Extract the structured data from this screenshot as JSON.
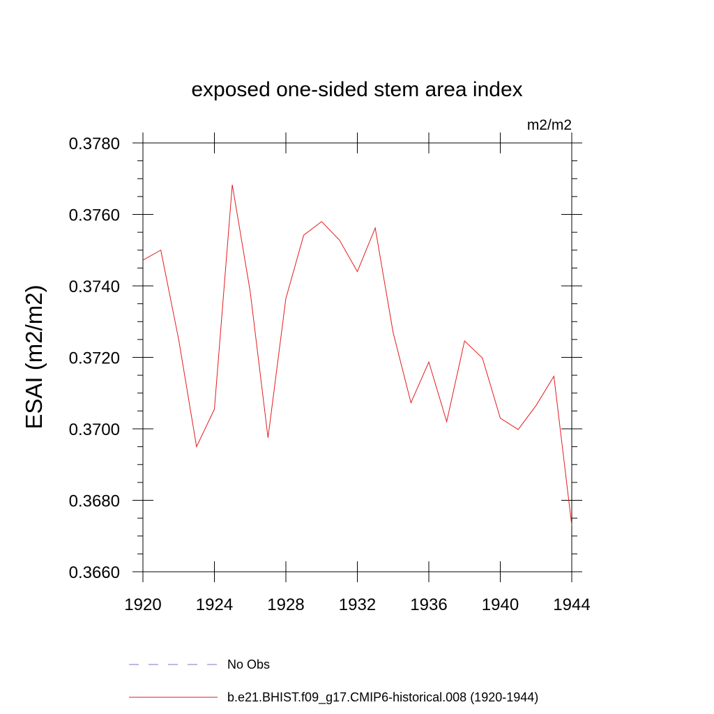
{
  "chart_data": {
    "type": "line",
    "title": "exposed one-sided stem area index",
    "units_label": "m2/m2",
    "ylabel": "ESAI  (m2/m2)",
    "xlabel": "",
    "xlim": [
      1920,
      1944
    ],
    "ylim": [
      0.366,
      0.378
    ],
    "x_ticks": [
      "1920",
      "1924",
      "1928",
      "1932",
      "1936",
      "1940",
      "1944"
    ],
    "y_ticks": [
      "0.3660",
      "0.3680",
      "0.3700",
      "0.3720",
      "0.3740",
      "0.3760",
      "0.3780"
    ],
    "grid": false,
    "legend_position": "bottom",
    "legend": [
      {
        "label": "No Obs",
        "color": "#7b73c8",
        "style": "dashed"
      },
      {
        "label": "b.e21.BHIST.f09_g17.CMIP6-historical.008 (1920-1944)",
        "color": "#e31a1c",
        "style": "solid"
      }
    ],
    "series": [
      {
        "name": "b.e21.BHIST.f09_g17.CMIP6-historical.008 (1920-1944)",
        "color": "#e31a1c",
        "x": [
          1920,
          1921,
          1922,
          1923,
          1924,
          1925,
          1926,
          1927,
          1928,
          1929,
          1930,
          1931,
          1932,
          1933,
          1934,
          1935,
          1936,
          1937,
          1938,
          1939,
          1940,
          1941,
          1942,
          1943,
          1944
        ],
        "values": [
          0.37472,
          0.375,
          0.3725,
          0.3695,
          0.37055,
          0.37683,
          0.37385,
          0.36975,
          0.37365,
          0.37542,
          0.3758,
          0.37528,
          0.3744,
          0.37562,
          0.3727,
          0.37073,
          0.37187,
          0.3702,
          0.37246,
          0.37198,
          0.3703,
          0.36998,
          0.37065,
          0.37147,
          0.3673
        ]
      }
    ]
  }
}
